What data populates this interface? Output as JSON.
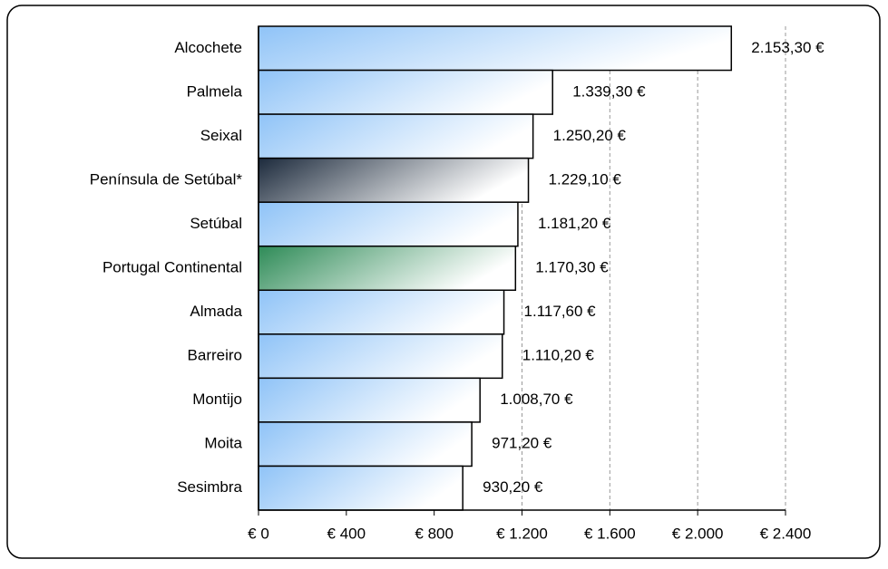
{
  "chart_data": {
    "type": "bar",
    "orientation": "horizontal",
    "categories": [
      "Alcochete",
      "Palmela",
      "Seixal",
      "Península de Setúbal*",
      "Setúbal",
      "Portugal Continental",
      "Almada",
      "Barreiro",
      "Montijo",
      "Moita",
      "Sesimbra"
    ],
    "values": [
      2153.3,
      1339.3,
      1250.2,
      1229.1,
      1181.2,
      1170.3,
      1117.6,
      1110.2,
      1008.7,
      971.2,
      930.2
    ],
    "value_labels": [
      "2.153,30 €",
      "1.339,30 €",
      "1.250,20 €",
      "1.229,10 €",
      "1.181,20 €",
      "1.170,30 €",
      "1.117,60 €",
      "1.110,20 €",
      "1.008,70 €",
      "971,20 €",
      "930,20 €"
    ],
    "colors": [
      "#8fc3f7",
      "#8fc3f7",
      "#8fc3f7",
      "#1c2a3c",
      "#8fc3f7",
      "#2e8b57",
      "#8fc3f7",
      "#8fc3f7",
      "#8fc3f7",
      "#8fc3f7",
      "#8fc3f7"
    ],
    "label_colors": [
      "#333399",
      "#333399",
      "#333399",
      "#333399",
      "#333399",
      "#2e8b57",
      "#333399",
      "#333399",
      "#333399",
      "#333399",
      "#333399"
    ],
    "xlim": [
      0,
      2400
    ],
    "xticks": [
      {
        "value": 0,
        "label": "€ 0"
      },
      {
        "value": 400,
        "label": "€ 400"
      },
      {
        "value": 800,
        "label": "€ 800"
      },
      {
        "value": 1200,
        "label": "€ 1.200"
      },
      {
        "value": 1600,
        "label": "€ 1.600"
      },
      {
        "value": 2000,
        "label": "€ 2.000"
      },
      {
        "value": 2400,
        "label": "€ 2.400"
      }
    ],
    "grid": true
  }
}
